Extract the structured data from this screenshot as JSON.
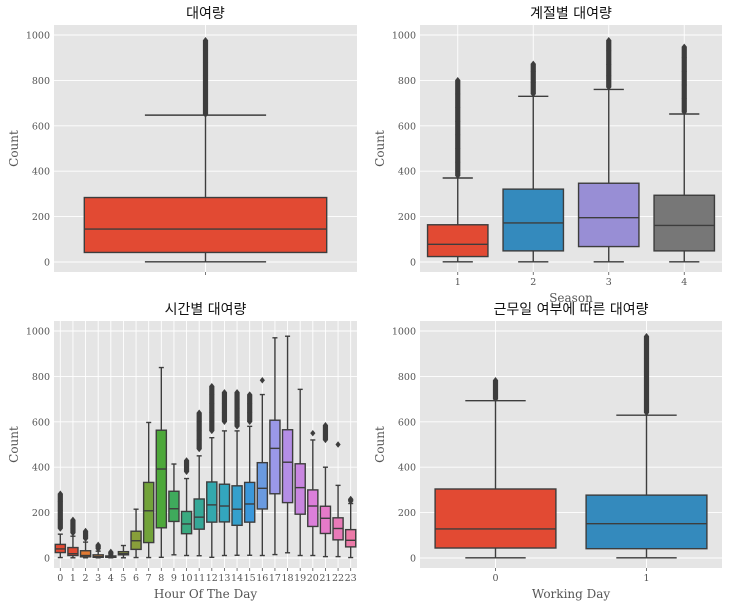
{
  "chart_data": [
    {
      "type": "box",
      "title": "대여량",
      "xlabel": "",
      "ylabel": "Count",
      "ylim": [
        0,
        1000
      ],
      "yticks": [
        0,
        200,
        400,
        600,
        800,
        1000
      ],
      "categories": [
        ""
      ],
      "boxes": [
        {
          "q1": 42,
          "median": 145,
          "q3": 284,
          "wlo": 1,
          "whi": 647,
          "fliers": [
            650,
            700,
            760,
            820,
            880,
            930,
            977
          ],
          "color": "#E24A33"
        }
      ]
    },
    {
      "type": "box",
      "title": "계절별 대여량",
      "xlabel": "Season",
      "ylabel": "Count",
      "ylim": [
        0,
        1000
      ],
      "yticks": [
        0,
        200,
        400,
        600,
        800,
        1000
      ],
      "categories": [
        "1",
        "2",
        "3",
        "4"
      ],
      "boxes": [
        {
          "q1": 24,
          "median": 78,
          "q3": 164,
          "wlo": 1,
          "whi": 370,
          "fliers": [
            380,
            440,
            500,
            560,
            620,
            680,
            740,
            801
          ],
          "color": "#E24A33"
        },
        {
          "q1": 49,
          "median": 172,
          "q3": 321,
          "wlo": 1,
          "whi": 730,
          "fliers": [
            740,
            790,
            840,
            873
          ],
          "color": "#348ABD"
        },
        {
          "q1": 68,
          "median": 195,
          "q3": 347,
          "wlo": 1,
          "whi": 760,
          "fliers": [
            770,
            820,
            870,
            930,
            977
          ],
          "color": "#988ED5"
        },
        {
          "q1": 49,
          "median": 161,
          "q3": 294,
          "wlo": 1,
          "whi": 652,
          "fliers": [
            660,
            720,
            780,
            840,
            900,
            948
          ],
          "color": "#777777"
        }
      ]
    },
    {
      "type": "box",
      "title": "시간별 대여량",
      "xlabel": "Hour Of The Day",
      "ylabel": "Count",
      "ylim": [
        0,
        1000
      ],
      "yticks": [
        0,
        200,
        400,
        600,
        800,
        1000
      ],
      "categories": [
        "0",
        "1",
        "2",
        "3",
        "4",
        "5",
        "6",
        "7",
        "8",
        "9",
        "10",
        "11",
        "12",
        "13",
        "14",
        "15",
        "16",
        "17",
        "18",
        "19",
        "20",
        "21",
        "22",
        "23"
      ],
      "boxes": [
        {
          "q1": 24,
          "median": 40,
          "q3": 60,
          "wlo": 2,
          "whi": 105,
          "fliers": [
            130,
            170,
            210,
            250,
            283
          ],
          "color": "#E24A33"
        },
        {
          "q1": 11,
          "median": 19,
          "q3": 46,
          "wlo": 1,
          "whi": 96,
          "fliers": [
            110,
            130,
            150,
            168
          ],
          "color": "#E24A33"
        },
        {
          "q1": 5,
          "median": 11,
          "q3": 32,
          "wlo": 1,
          "whi": 70,
          "fliers": [
            85,
            100,
            119
          ],
          "color": "#E27A33"
        },
        {
          "q1": 3,
          "median": 6,
          "q3": 14,
          "wlo": 1,
          "whi": 30,
          "fliers": [
            40,
            50,
            58
          ],
          "color": "#C87F3A"
        },
        {
          "q1": 3,
          "median": 6,
          "q3": 9,
          "wlo": 1,
          "whi": 14,
          "fliers": [
            18,
            22,
            27
          ],
          "color": "#A48A3F"
        },
        {
          "q1": 14,
          "median": 19,
          "q3": 28,
          "wlo": 1,
          "whi": 55,
          "fliers": [],
          "color": "#8A9440"
        },
        {
          "q1": 38,
          "median": 76,
          "q3": 118,
          "wlo": 2,
          "whi": 215,
          "fliers": [],
          "color": "#889F3A"
        },
        {
          "q1": 68,
          "median": 208,
          "q3": 333,
          "wlo": 2,
          "whi": 597,
          "fliers": [],
          "color": "#72A33A"
        },
        {
          "q1": 133,
          "median": 392,
          "q3": 563,
          "wlo": 3,
          "whi": 839,
          "fliers": [],
          "color": "#4DA83A"
        },
        {
          "q1": 161,
          "median": 217,
          "q3": 294,
          "wlo": 14,
          "whi": 414,
          "fliers": [],
          "color": "#3FAA5C"
        },
        {
          "q1": 107,
          "median": 150,
          "q3": 205,
          "wlo": 11,
          "whi": 350,
          "fliers": [
            380,
            430
          ],
          "color": "#3AAA80"
        },
        {
          "q1": 127,
          "median": 180,
          "q3": 260,
          "wlo": 10,
          "whi": 450,
          "fliers": [
            480,
            520,
            560,
            600,
            640
          ],
          "color": "#35A898"
        },
        {
          "q1": 158,
          "median": 234,
          "q3": 335,
          "wlo": 3,
          "whi": 530,
          "fliers": [
            560,
            600,
            640,
            680,
            720,
            757
          ],
          "color": "#33A8AE"
        },
        {
          "q1": 159,
          "median": 229,
          "q3": 325,
          "wlo": 11,
          "whi": 560,
          "fliers": [
            600,
            640,
            680,
            730
          ],
          "color": "#33A6BE"
        },
        {
          "q1": 144,
          "median": 215,
          "q3": 318,
          "wlo": 12,
          "whi": 560,
          "fliers": [
            580,
            620,
            660,
            700,
            730
          ],
          "color": "#35A0CC"
        },
        {
          "q1": 158,
          "median": 238,
          "q3": 333,
          "wlo": 12,
          "whi": 580,
          "fliers": [
            600,
            640,
            680,
            720
          ],
          "color": "#3A97DA"
        },
        {
          "q1": 216,
          "median": 307,
          "q3": 420,
          "wlo": 11,
          "whi": 720,
          "fliers": [
            783
          ],
          "color": "#6A9AE0"
        },
        {
          "q1": 283,
          "median": 483,
          "q3": 607,
          "wlo": 15,
          "whi": 970,
          "fliers": [],
          "color": "#9A98E8"
        },
        {
          "q1": 244,
          "median": 422,
          "q3": 565,
          "wlo": 23,
          "whi": 977,
          "fliers": [],
          "color": "#B48EE6"
        },
        {
          "q1": 193,
          "median": 310,
          "q3": 415,
          "wlo": 11,
          "whi": 743,
          "fliers": [],
          "color": "#C986E0"
        },
        {
          "q1": 139,
          "median": 229,
          "q3": 300,
          "wlo": 11,
          "whi": 520,
          "fliers": [
            550
          ],
          "color": "#DC7FDA"
        },
        {
          "q1": 108,
          "median": 175,
          "q3": 228,
          "wlo": 6,
          "whi": 400,
          "fliers": [
            520,
            585
          ],
          "color": "#E57AC8"
        },
        {
          "q1": 80,
          "median": 130,
          "q3": 177,
          "wlo": 6,
          "whi": 320,
          "fliers": [
            500
          ],
          "color": "#E97AB8"
        },
        {
          "q1": 49,
          "median": 78,
          "q3": 125,
          "wlo": 2,
          "whi": 240,
          "fliers": [
            250,
            260
          ],
          "color": "#EC7AA8"
        }
      ]
    },
    {
      "type": "box",
      "title": "근무일 여부에 따른 대여량",
      "xlabel": "Working Day",
      "ylabel": "Count",
      "ylim": [
        0,
        1000
      ],
      "yticks": [
        0,
        200,
        400,
        600,
        800,
        1000
      ],
      "categories": [
        "0",
        "1"
      ],
      "boxes": [
        {
          "q1": 44,
          "median": 128,
          "q3": 304,
          "wlo": 1,
          "whi": 693,
          "fliers": [
            700,
            740,
            783
          ],
          "color": "#E24A33"
        },
        {
          "q1": 41,
          "median": 151,
          "q3": 277,
          "wlo": 1,
          "whi": 629,
          "fliers": [
            640,
            700,
            760,
            820,
            880,
            940,
            977
          ],
          "color": "#348ABD"
        }
      ]
    }
  ]
}
